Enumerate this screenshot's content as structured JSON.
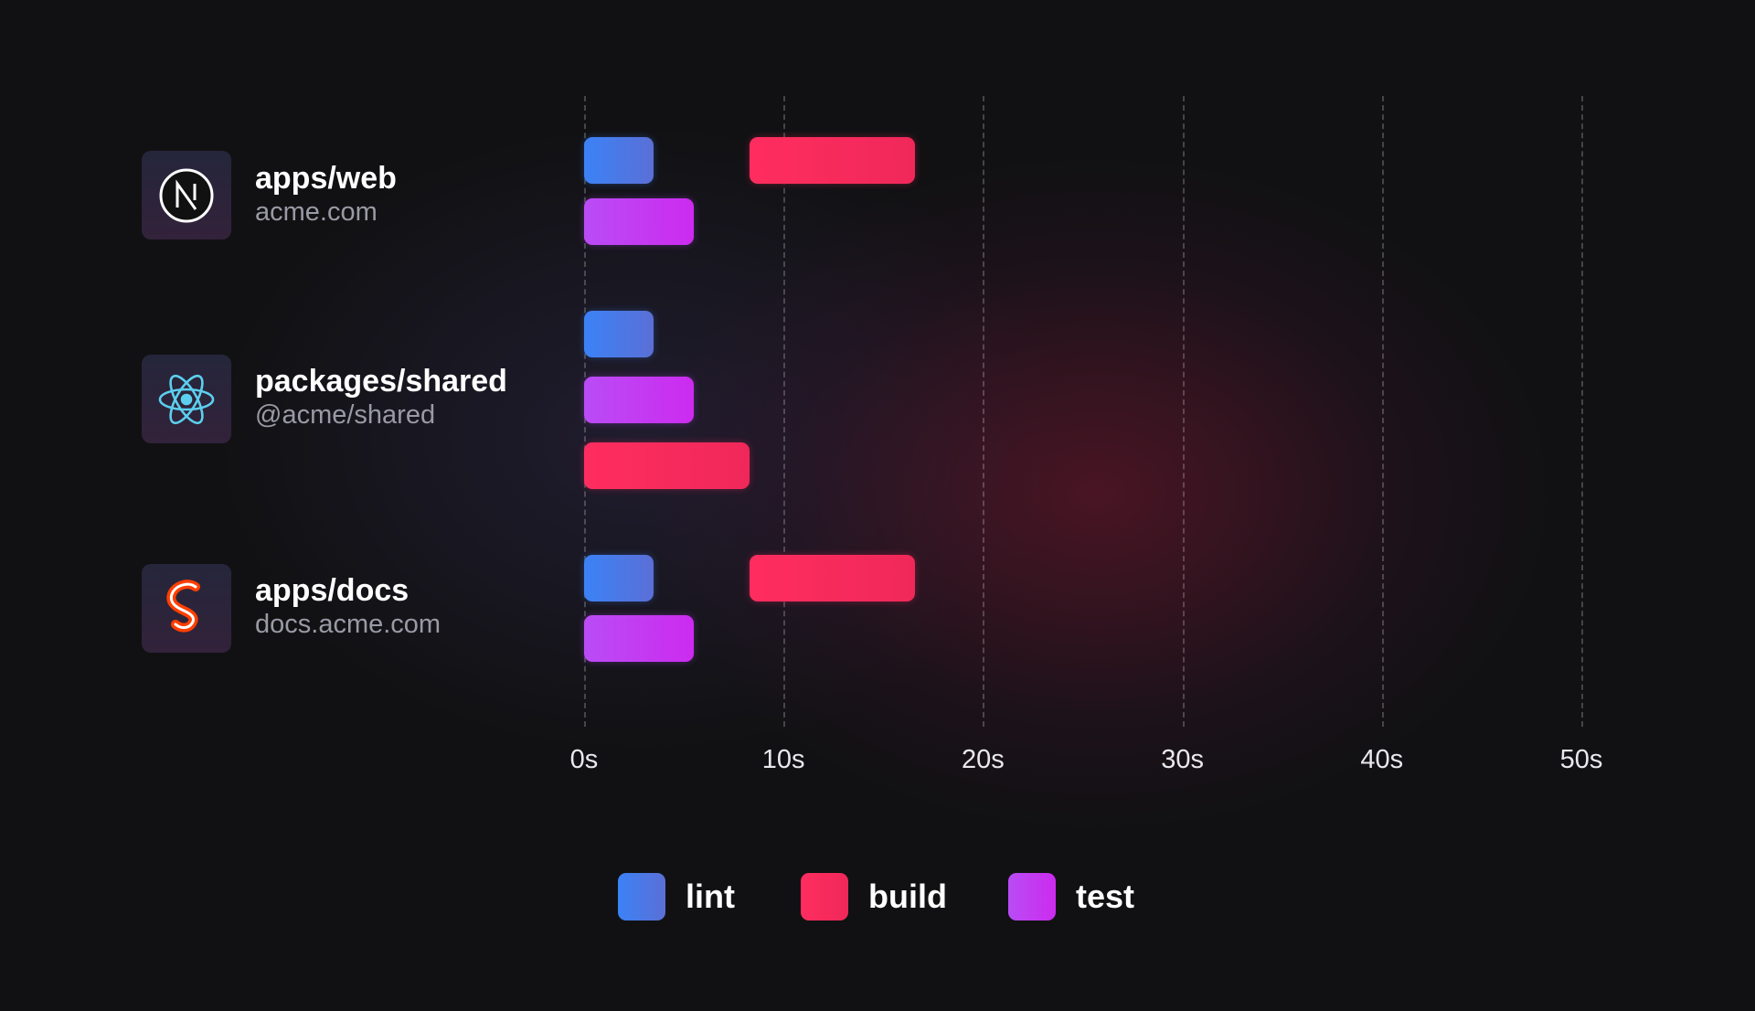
{
  "chart_data": {
    "type": "bar",
    "orientation": "horizontal-gantt",
    "xlim": [
      0,
      50
    ],
    "x_ticks": [
      "0s",
      "10s",
      "20s",
      "30s",
      "40s",
      "50s"
    ],
    "grid": true,
    "legend_placement": "bottom",
    "series": [
      {
        "name": "lint",
        "color": "#3b82f6",
        "gradient_end": "#5b6fd6"
      },
      {
        "name": "build",
        "color": "#ff2d5f",
        "gradient_end": "#f0285a"
      },
      {
        "name": "test",
        "color": "#b94cf5",
        "gradient_end": "#cc2bef"
      }
    ],
    "rows": [
      {
        "name": "apps/web",
        "subtitle": "acme.com",
        "icon": "nextjs-icon",
        "bars": [
          {
            "task": "lint",
            "start": 0,
            "end": 3.5
          },
          {
            "task": "build",
            "start": 8.3,
            "end": 16.6
          },
          {
            "task": "test",
            "start": 0,
            "end": 5.5
          }
        ]
      },
      {
        "name": "packages/shared",
        "subtitle": "@acme/shared",
        "icon": "react-icon",
        "bars": [
          {
            "task": "lint",
            "start": 0,
            "end": 3.5
          },
          {
            "task": "test",
            "start": 0,
            "end": 5.5
          },
          {
            "task": "build",
            "start": 0,
            "end": 8.3
          }
        ]
      },
      {
        "name": "apps/docs",
        "subtitle": "docs.acme.com",
        "icon": "svelte-icon",
        "bars": [
          {
            "task": "lint",
            "start": 0,
            "end": 3.5
          },
          {
            "task": "build",
            "start": 8.3,
            "end": 16.6
          },
          {
            "task": "test",
            "start": 0,
            "end": 5.5
          }
        ]
      }
    ]
  }
}
